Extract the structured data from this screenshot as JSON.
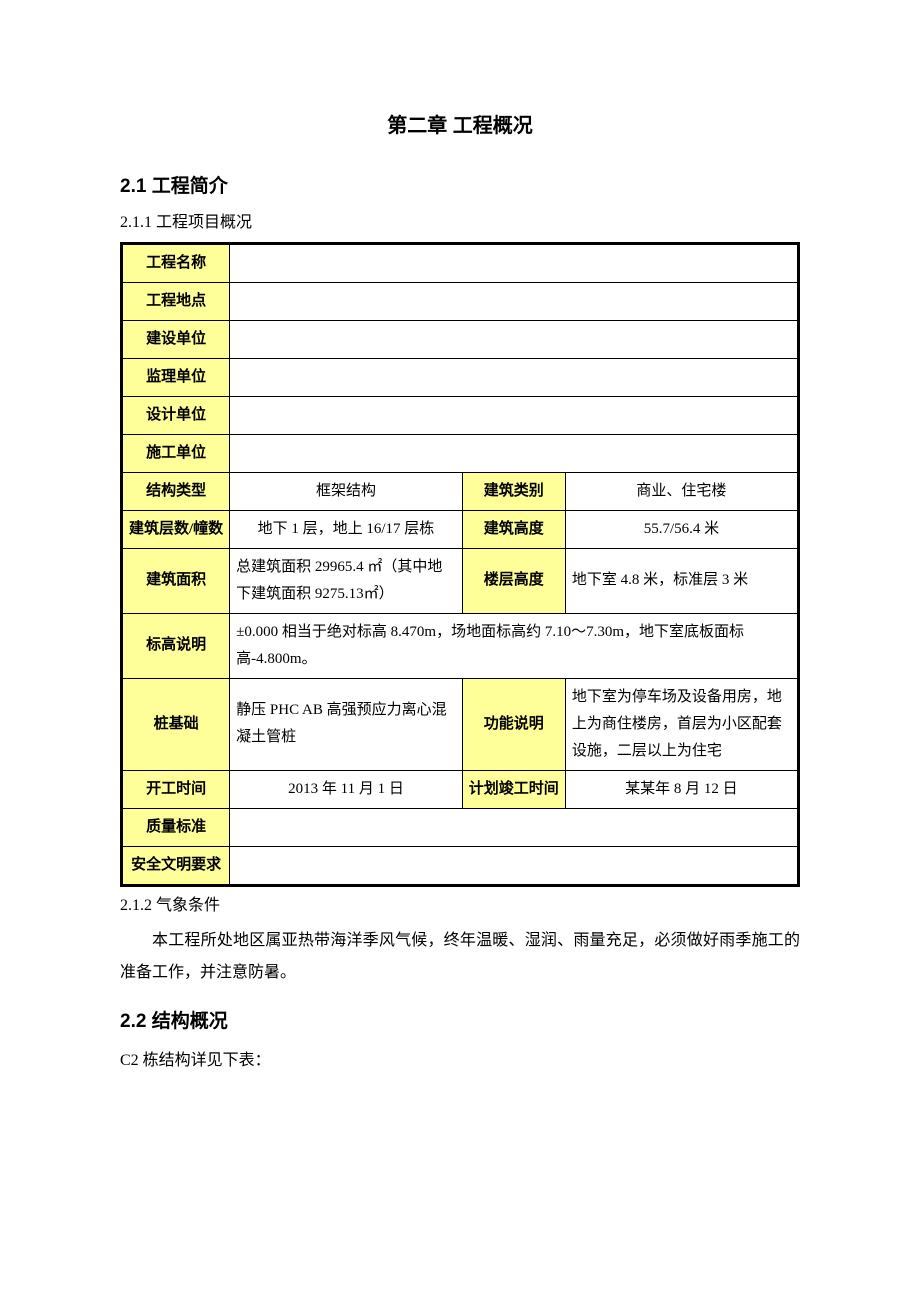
{
  "chapter_title": "第二章 工程概况",
  "sections": {
    "s2_1": {
      "heading": "2.1 工程简介",
      "sub1": "2.1.1 工程项目概况",
      "sub2": "2.1.2 气象条件",
      "climate_para": "本工程所处地区属亚热带海洋季风气候，终年温暖、湿润、雨量充足，必须做好雨季施工的准备工作，并注意防暑。"
    },
    "s2_2": {
      "heading": "2.2 结构概况",
      "para": "C2 栋结构详见下表："
    }
  },
  "table": {
    "labels": {
      "proj_name": "工程名称",
      "proj_loc": "工程地点",
      "build_unit": "建设单位",
      "supervise_unit": "监理单位",
      "design_unit": "设计单位",
      "construct_unit": "施工单位",
      "struct_type": "结构类型",
      "build_category": "建筑类别",
      "floors": "建筑层数/幢数",
      "build_height": "建筑高度",
      "build_area": "建筑面积",
      "floor_height": "楼层高度",
      "elev_note": "标高说明",
      "pile": "桩基础",
      "function": "功能说明",
      "start_date": "开工时间",
      "end_date": "计划竣工时间",
      "quality": "质量标准",
      "safety": "安全文明要求"
    },
    "values": {
      "proj_name": "",
      "proj_loc": "",
      "build_unit": "",
      "supervise_unit": "",
      "design_unit": "",
      "construct_unit": "",
      "struct_type": "框架结构",
      "build_category": "商业、住宅楼",
      "floors": "地下 1 层，地上 16/17 层栋",
      "build_height": "55.7/56.4 米",
      "build_area": "总建筑面积 29965.4 ㎡（其中地下建筑面积 9275.13㎡）",
      "floor_height": "地下室 4.8 米，标准层 3 米",
      "elev_note": "±0.000 相当于绝对标高 8.470m，场地面标高约 7.10～7.30m，地下室底板面标高-4.800m。",
      "pile": "静压 PHC AB 高强预应力离心混凝土管桩",
      "function": "地下室为停车场及设备用房，地上为商住楼房，首层为小区配套设施，二层以上为住宅",
      "start_date": "2013 年 11 月 1 日",
      "end_date": "某某年 8 月 12 日",
      "quality": "",
      "safety": ""
    }
  },
  "style": {
    "header_bg": "#ffff99",
    "border_color": "#000000",
    "outer_border_width": 3,
    "inner_border_width": 1,
    "body_font_size": 16,
    "table_font_size": 15,
    "title_font_size": 20,
    "heading_font_size": 19
  }
}
